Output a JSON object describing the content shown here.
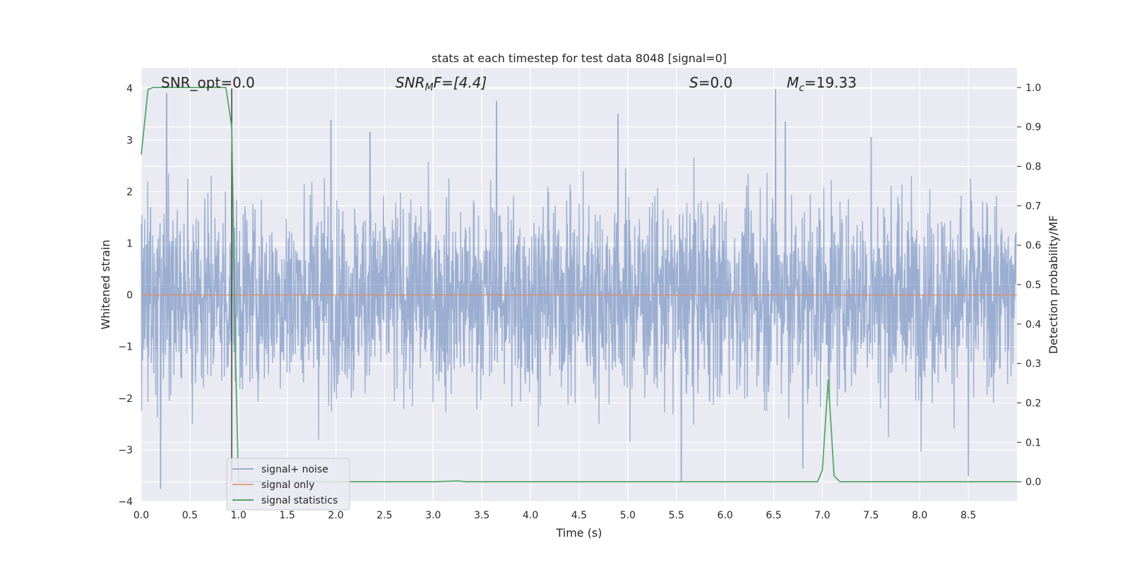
{
  "chart_data": {
    "type": "line",
    "title": "stats at each timestep for test data 8048 [signal=0]",
    "xlabel": "Time (s)",
    "ylabel": "Whitened strain",
    "ylabel_right": "Detection probability/MF",
    "xlim": [
      0.0,
      9.0
    ],
    "ylim": [
      -4.0,
      4.4
    ],
    "ylim_right": [
      -0.05,
      1.05
    ],
    "xticks": [
      "0.0",
      "0.5",
      "1.0",
      "1.5",
      "2.0",
      "2.5",
      "3.0",
      "3.5",
      "4.0",
      "4.5",
      "5.0",
      "5.5",
      "6.0",
      "6.5",
      "7.0",
      "7.5",
      "8.0",
      "8.5"
    ],
    "yticks": [
      "4",
      "3",
      "2",
      "1",
      "0",
      "−1",
      "−2",
      "−3",
      "−4"
    ],
    "yticks_right": [
      "1.0",
      "0.9",
      "0.8",
      "0.7",
      "0.6",
      "0.5",
      "0.4",
      "0.3",
      "0.2",
      "0.1",
      "0.0"
    ],
    "grid": true,
    "legend_placement": "lower-left",
    "annotations": {
      "snr_opt": "SNR_opt=0.0",
      "snr_mf_label": "SNR",
      "snr_mf_sub": "M",
      "snr_mf_rest": "F=[4.4]",
      "s_label": "S",
      "s_rest": "=0.0",
      "mc_label": "M",
      "mc_sub": "c",
      "mc_rest": "=19.33"
    },
    "marker_x": 0.93,
    "series": [
      {
        "name": "signal+ noise",
        "axis": "left",
        "color": "#4c72b0",
        "description": "whitened noise, roughly within -3.7 to 4.0",
        "peaks": [
          [
            0.2,
            -3.75
          ],
          [
            0.26,
            3.9
          ],
          [
            1.95,
            3.38
          ],
          [
            2.35,
            3.15
          ],
          [
            3.65,
            3.75
          ],
          [
            4.9,
            3.5
          ],
          [
            5.55,
            -3.6
          ],
          [
            6.52,
            3.98
          ],
          [
            6.62,
            3.35
          ],
          [
            6.8,
            -3.35
          ],
          [
            7.5,
            3.05
          ],
          [
            8.5,
            -3.5
          ]
        ]
      },
      {
        "name": "signal only",
        "axis": "left",
        "color": "#dd8452",
        "x": [
          0.0,
          9.0
        ],
        "y": [
          0.0,
          0.0
        ]
      },
      {
        "name": "signal statistics",
        "axis": "right",
        "color": "#55a868",
        "x": [
          0.0,
          0.07,
          0.12,
          0.2,
          0.5,
          0.87,
          0.93,
          0.97,
          1.0,
          1.1,
          2.0,
          3.0,
          3.25,
          3.35,
          4.0,
          5.0,
          6.0,
          6.95,
          7.0,
          7.06,
          7.12,
          7.18,
          7.5,
          9.0
        ],
        "y": [
          0.83,
          0.995,
          1.0,
          1.0,
          1.0,
          1.0,
          0.9,
          0.3,
          0.0,
          0.0,
          0.0,
          0.0,
          0.002,
          0.0,
          0.0,
          0.0,
          0.0,
          0.0,
          0.03,
          0.26,
          0.015,
          0.0,
          0.0,
          0.0
        ]
      }
    ]
  }
}
